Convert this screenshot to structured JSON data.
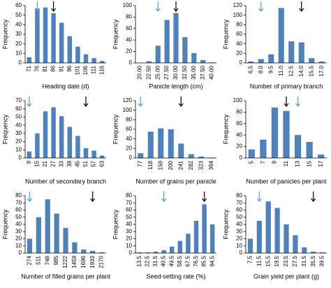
{
  "chart_data": [
    {
      "type": "bar",
      "x_label": "Heading date (d)",
      "y_label": "Frequency",
      "color": "#4f81bd",
      "categories": [
        "71",
        "76",
        "81",
        "86",
        "91",
        "96",
        "101",
        "106",
        "111",
        "116"
      ],
      "values": [
        6,
        57,
        58,
        52,
        42,
        28,
        17,
        9,
        5,
        2
      ],
      "ylim": [
        0,
        60
      ],
      "yticks": [
        0,
        10,
        20,
        30,
        40,
        50,
        60
      ],
      "arrows": [
        {
          "at": "76",
          "color": "#5b9bd5"
        },
        {
          "at": "86",
          "color": "#000000"
        }
      ]
    },
    {
      "type": "bar",
      "x_label": "Panicle length (cm)",
      "y_label": "Frequency",
      "color": "#4f81bd",
      "categories": [
        "20.00",
        "22.50",
        "25.00",
        "27.50",
        "30.00",
        "32.50",
        "35.00",
        "37.50",
        "40.00"
      ],
      "values": [
        0,
        3,
        30,
        75,
        87,
        45,
        17,
        5,
        1
      ],
      "ylim": [
        0,
        100
      ],
      "yticks": [
        0,
        20,
        40,
        60,
        80,
        100
      ],
      "arrows": [
        {
          "at": "25.00",
          "color": "#5b9bd5"
        },
        {
          "at": "30.00",
          "color": "#000000"
        }
      ]
    },
    {
      "type": "bar",
      "x_label": "Number of primary branch",
      "y_label": "Frequency",
      "color": "#4f81bd",
      "categories": [
        "6.5",
        "8.0",
        "9.5",
        "11.0",
        "12.5",
        "14.0",
        "15.5",
        "17.0"
      ],
      "values": [
        3,
        8,
        18,
        115,
        45,
        43,
        10,
        3
      ],
      "ylim": [
        0,
        120
      ],
      "yticks": [
        0,
        20,
        40,
        60,
        80,
        100,
        120
      ],
      "arrows": [
        {
          "at": "8.0",
          "color": "#5b9bd5"
        },
        {
          "at": "14.0",
          "color": "#000000"
        }
      ]
    },
    {
      "type": "bar",
      "x_label": "Number of secondary branch",
      "y_label": "Frequency",
      "color": "#4f81bd",
      "categories": [
        "9",
        "15",
        "21",
        "27",
        "33",
        "39",
        "45",
        "51",
        "57",
        "63"
      ],
      "values": [
        8,
        30,
        57,
        62,
        51,
        38,
        27,
        12,
        9,
        3
      ],
      "ylim": [
        0,
        70
      ],
      "yticks": [
        0,
        10,
        20,
        30,
        40,
        50,
        60,
        70
      ],
      "arrows": [
        {
          "at": "9",
          "color": "#5b9bd5"
        },
        {
          "at": "51",
          "color": "#000000"
        }
      ]
    },
    {
      "type": "bar",
      "x_label": "Number of grains per panicle",
      "y_label": "Frequency",
      "color": "#4f81bd",
      "categories": [
        "77",
        "118",
        "159",
        "200",
        "241",
        "282",
        "323",
        "364"
      ],
      "values": [
        10,
        55,
        62,
        60,
        30,
        8,
        3,
        1
      ],
      "ylim": [
        0,
        120
      ],
      "yticks": [
        0,
        20,
        40,
        60,
        80,
        100,
        120
      ],
      "arrows": [
        {
          "at": "77",
          "color": "#5b9bd5"
        },
        {
          "at": "241",
          "color": "#000000"
        }
      ]
    },
    {
      "type": "bar",
      "x_label": "Number of panicles per plant",
      "y_label": "Frequency",
      "color": "#4f81bd",
      "categories": [
        "5",
        "7",
        "9",
        "11",
        "13",
        "15",
        "17"
      ],
      "values": [
        15,
        32,
        88,
        82,
        40,
        28,
        6
      ],
      "ylim": [
        0,
        100
      ],
      "yticks": [
        0,
        20,
        40,
        60,
        80,
        100
      ],
      "arrows": [
        {
          "at": "11",
          "color": "#000000"
        },
        {
          "at": "13",
          "color": "#5b9bd5"
        }
      ]
    },
    {
      "type": "bar",
      "x_label": "Number of filled grains per plant",
      "y_label": "Frequency",
      "color": "#4f81bd",
      "categories": [
        "274",
        "511",
        "748",
        "985",
        "1222",
        "1459",
        "1696",
        "1933",
        "2170"
      ],
      "values": [
        20,
        50,
        75,
        55,
        35,
        15,
        5,
        3,
        1
      ],
      "ylim": [
        0,
        80
      ],
      "yticks": [
        0,
        10,
        20,
        30,
        40,
        50,
        60,
        70,
        80
      ],
      "arrows": [
        {
          "at": "274",
          "color": "#5b9bd5"
        },
        {
          "at": "1933",
          "color": "#000000"
        }
      ]
    },
    {
      "type": "bar",
      "x_label": "Seed-setting rate (%)",
      "y_label": "Frequency",
      "color": "#4f81bd",
      "categories": [
        "13.5",
        "22.5",
        "31.5",
        "40.5",
        "49.5",
        "58.5",
        "67.5",
        "76.5",
        "85.5",
        "94.5"
      ],
      "values": [
        1,
        1,
        2,
        4,
        9,
        17,
        27,
        45,
        68,
        40
      ],
      "ylim": [
        0,
        80
      ],
      "yticks": [
        0,
        10,
        20,
        30,
        40,
        50,
        60,
        70,
        80
      ],
      "arrows": [
        {
          "at": "40.5",
          "color": "#5b9bd5"
        },
        {
          "at": "85.5",
          "color": "#000000"
        }
      ]
    },
    {
      "type": "bar",
      "x_label": "Grain yield per plant (g)",
      "y_label": "Frequency",
      "color": "#4f81bd",
      "categories": [
        "7.5",
        "11.5",
        "15.5",
        "19.5",
        "23.5",
        "27.5",
        "31.5",
        "35.5",
        "39.5"
      ],
      "values": [
        20,
        45,
        72,
        63,
        40,
        25,
        8,
        2,
        1
      ],
      "ylim": [
        0,
        80
      ],
      "yticks": [
        0,
        10,
        20,
        30,
        40,
        50,
        60,
        70,
        80
      ],
      "arrows": [
        {
          "at": "11.5",
          "color": "#5b9bd5"
        },
        {
          "at": "35.5",
          "color": "#000000"
        }
      ]
    }
  ]
}
